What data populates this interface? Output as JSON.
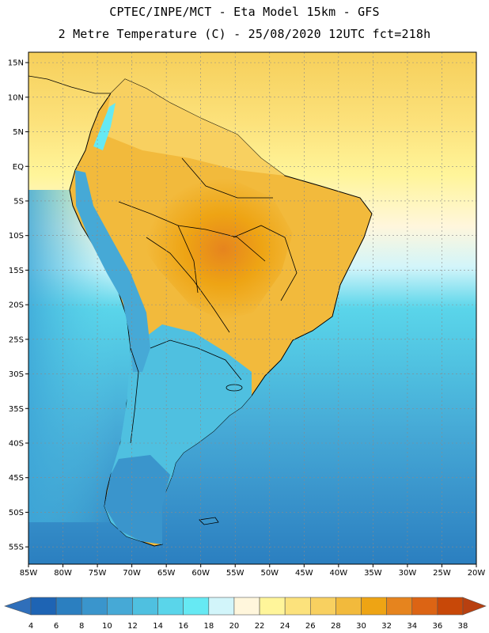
{
  "header": {
    "line1": "CPTEC/INPE/MCT -  Eta Model 15km - GFS",
    "line2": "2 Metre Temperature (C) - 25/08/2020 12UTC fct=218h"
  },
  "map": {
    "lon_min": -85,
    "lon_max": -20,
    "lat_min": -57.5,
    "lat_max": 16.5,
    "lat_ticks": [
      "15N",
      "10N",
      "5N",
      "EQ",
      "5S",
      "10S",
      "15S",
      "20S",
      "25S",
      "30S",
      "35S",
      "40S",
      "45S",
      "50S",
      "55S"
    ],
    "lat_values": [
      15,
      10,
      5,
      0,
      -5,
      -10,
      -15,
      -20,
      -25,
      -30,
      -35,
      -40,
      -45,
      -50,
      -55
    ],
    "lon_ticks": [
      "85W",
      "80W",
      "75W",
      "70W",
      "65W",
      "60W",
      "55W",
      "50W",
      "45W",
      "40W",
      "35W",
      "30W",
      "25W",
      "20W"
    ],
    "lon_values": [
      -85,
      -80,
      -75,
      -70,
      -65,
      -60,
      -55,
      -50,
      -45,
      -40,
      -35,
      -30,
      -25,
      -20
    ]
  },
  "colorbar": {
    "labels": [
      "4",
      "6",
      "8",
      "10",
      "12",
      "14",
      "16",
      "18",
      "20",
      "22",
      "24",
      "26",
      "28",
      "30",
      "32",
      "34",
      "36",
      "38"
    ],
    "colors": [
      "#1e64b4",
      "#2b7fc0",
      "#3a95cc",
      "#46a9d6",
      "#4fc0e0",
      "#5ad5ea",
      "#66e9f3",
      "#d2f5fa",
      "#fff6dc",
      "#fff59a",
      "#fce27c",
      "#f8d060",
      "#f2ba3c",
      "#eea414",
      "#e6841e",
      "#dc6414",
      "#c84808"
    ],
    "low_color": "#2f6fba",
    "high_color": "#b84010"
  }
}
